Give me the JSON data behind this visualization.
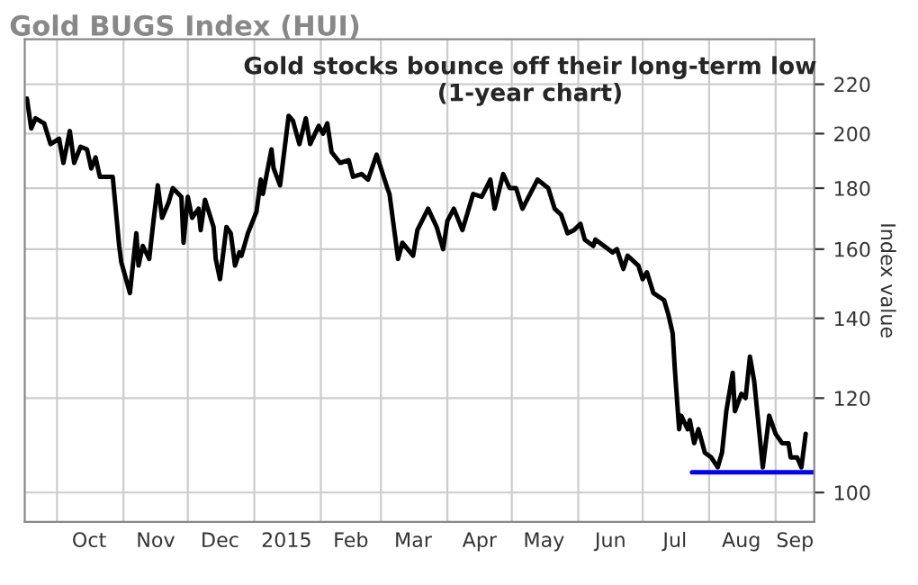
{
  "chart_data": {
    "type": "line",
    "title": "Gold BUGS Index (HUI)",
    "ylabel": "Index value",
    "annotations": [
      "Gold stocks bounce off their long-term low\n(1-year chart)"
    ],
    "log": true,
    "grid": true,
    "legend": false,
    "marker": "none",
    "line_style": "solid",
    "xlim": [
      "2014-09-16",
      "2015-09-19"
    ],
    "ylim": [
      94.5,
      240
    ],
    "yticks": [
      100,
      120,
      140,
      160,
      180,
      200,
      220
    ],
    "xticks": [
      {
        "value": "2014-10-01",
        "label": null
      },
      {
        "value": "2014-11-01",
        "label": null
      },
      {
        "value": "2014-12-01",
        "label": null
      },
      {
        "value": "2015-01-01",
        "label": null
      },
      {
        "value": "2015-02-01",
        "label": null
      },
      {
        "value": "2015-03-01",
        "label": null
      },
      {
        "value": "2015-04-01",
        "label": null
      },
      {
        "value": "2015-05-01",
        "label": null
      },
      {
        "value": "2015-06-01",
        "label": null
      },
      {
        "value": "2015-07-01",
        "label": null
      },
      {
        "value": "2015-08-01",
        "label": null
      },
      {
        "value": "2015-09-01",
        "label": null
      },
      {
        "value": "2014-10-16",
        "label": "Oct"
      },
      {
        "value": "2014-11-16",
        "label": "Nov"
      },
      {
        "value": "2014-12-16",
        "label": "Dec"
      },
      {
        "value": "2015-01-16",
        "label": "2015"
      },
      {
        "value": "2015-02-15",
        "label": "Feb"
      },
      {
        "value": "2015-03-16",
        "label": "Mar"
      },
      {
        "value": "2015-04-16",
        "label": "Apr"
      },
      {
        "value": "2015-05-16",
        "label": "May"
      },
      {
        "value": "2015-06-16",
        "label": "Jun"
      },
      {
        "value": "2015-07-16",
        "label": "Jul"
      },
      {
        "value": "2015-08-16",
        "label": "Aug"
      },
      {
        "value": "2015-09-10",
        "label": "Sep"
      }
    ],
    "series": [
      {
        "color": "#000000",
        "x": [
          "2014-09-17",
          "2014-09-19",
          "2014-09-21",
          "2014-09-25",
          "2014-09-28",
          "2014-10-02",
          "2014-10-04",
          "2014-10-07",
          "2014-10-09",
          "2014-10-12",
          "2014-10-15",
          "2014-10-17",
          "2014-10-19",
          "2014-10-21",
          "2014-10-27",
          "2014-10-30",
          "2014-10-31",
          "2014-11-04",
          "2014-11-07",
          "2014-11-08",
          "2014-11-10",
          "2014-11-13",
          "2014-11-15",
          "2014-11-17",
          "2014-11-19",
          "2014-11-22",
          "2014-11-24",
          "2014-11-28",
          "2014-11-29",
          "2014-12-01",
          "2014-12-03",
          "2014-12-06",
          "2014-12-07",
          "2014-12-09",
          "2014-12-13",
          "2014-12-14",
          "2014-12-16",
          "2014-12-19",
          "2014-12-21",
          "2014-12-23",
          "2014-12-25",
          "2014-12-26",
          "2014-12-29",
          "2015-01-02",
          "2015-01-04",
          "2015-01-05",
          "2015-01-09",
          "2015-01-10",
          "2015-01-13",
          "2015-01-17",
          "2015-01-19",
          "2015-01-22",
          "2015-01-25",
          "2015-01-27",
          "2015-01-31",
          "2015-02-02",
          "2015-02-04",
          "2015-02-06",
          "2015-02-10",
          "2015-02-14",
          "2015-02-16",
          "2015-02-20",
          "2015-02-23",
          "2015-02-27",
          "2015-03-04",
          "2015-03-05",
          "2015-03-09",
          "2015-03-11",
          "2015-03-16",
          "2015-03-18",
          "2015-03-23",
          "2015-03-27",
          "2015-03-30",
          "2015-04-01",
          "2015-04-04",
          "2015-04-08",
          "2015-04-13",
          "2015-04-17",
          "2015-04-21",
          "2015-04-23",
          "2015-04-27",
          "2015-04-30",
          "2015-05-03",
          "2015-05-06",
          "2015-05-13",
          "2015-05-18",
          "2015-05-21",
          "2015-05-24",
          "2015-05-27",
          "2015-05-30",
          "2015-06-02",
          "2015-06-04",
          "2015-06-08",
          "2015-06-09",
          "2015-06-13",
          "2015-06-17",
          "2015-06-19",
          "2015-06-22",
          "2015-06-24",
          "2015-06-29",
          "2015-07-01",
          "2015-07-03",
          "2015-07-06",
          "2015-07-11",
          "2015-07-13",
          "2015-07-15",
          "2015-07-16",
          "2015-07-18",
          "2015-07-19",
          "2015-07-22",
          "2015-07-23",
          "2015-07-25",
          "2015-07-27",
          "2015-07-30",
          "2015-08-02",
          "2015-08-05",
          "2015-08-07",
          "2015-08-09",
          "2015-08-12",
          "2015-08-13",
          "2015-08-16",
          "2015-08-18",
          "2015-08-20",
          "2015-08-22",
          "2015-08-26",
          "2015-08-29",
          "2015-09-01",
          "2015-09-04",
          "2015-09-07",
          "2015-09-08",
          "2015-09-11",
          "2015-09-13",
          "2015-09-15"
        ],
        "values": [
          214,
          202,
          206,
          204,
          196,
          198,
          189,
          201,
          189,
          195,
          194,
          187,
          191,
          184,
          184,
          161,
          156,
          147,
          165,
          155,
          161,
          157,
          169,
          181,
          170,
          175,
          180,
          177,
          162,
          177,
          170,
          173,
          166,
          176,
          167,
          157,
          151,
          167,
          165,
          155,
          159,
          158,
          165,
          172,
          183,
          178,
          194,
          187,
          181,
          207,
          205,
          196,
          206,
          196,
          203,
          200,
          204,
          193,
          189,
          190,
          184,
          185,
          183,
          192,
          180,
          178,
          157,
          162,
          158,
          166,
          173,
          167,
          160,
          169,
          173,
          166,
          178,
          177,
          183,
          173,
          185,
          180,
          180,
          173,
          183,
          180,
          173,
          171,
          165,
          166,
          168,
          163,
          161,
          163,
          161,
          159,
          160,
          154,
          158,
          155,
          151,
          153,
          147,
          145,
          141,
          136,
          127,
          113,
          116,
          113,
          115,
          110,
          113,
          108,
          107,
          105,
          108,
          117,
          126,
          117,
          121,
          120,
          130,
          124,
          105,
          116,
          112,
          110,
          110,
          107,
          107,
          105,
          112
        ]
      },
      {
        "color": "#0000ff",
        "x": [
          "2015-07-24",
          "2015-09-19"
        ],
        "values": [
          104,
          104
        ]
      }
    ]
  }
}
